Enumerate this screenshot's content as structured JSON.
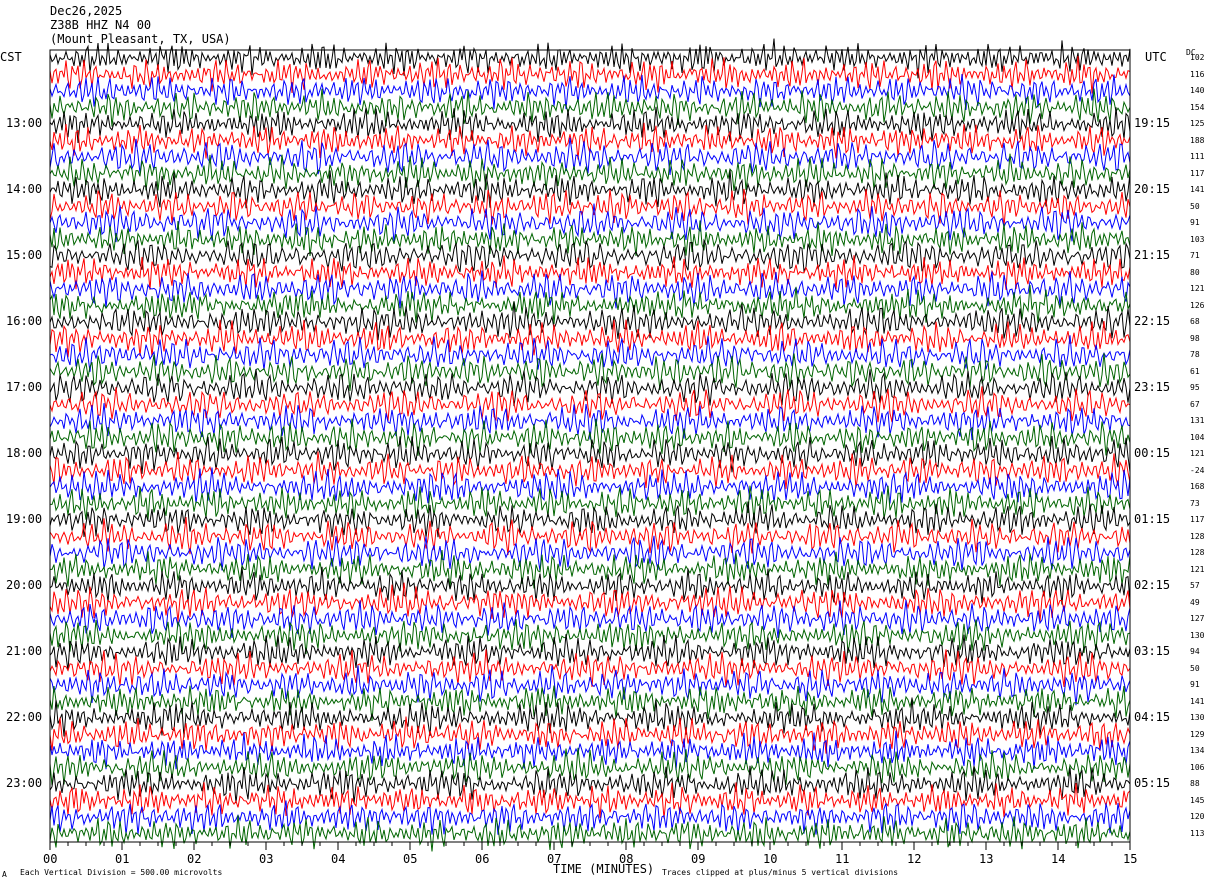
{
  "header": {
    "date": "Dec26,2025",
    "station": "Z38B HHZ N4 00",
    "location": "(Mount Pleasant, TX, USA)"
  },
  "left_timezone": "CST",
  "right_timezone": "UTC",
  "dc_header": "DC",
  "footer": {
    "left": "Each Vertical Division =  500.00 microvolts",
    "right": "Traces clipped at plus/minus 5 vertical divisions",
    "corner_mark": "A"
  },
  "colors": {
    "trace_cycle": [
      "#000000",
      "#ff0000",
      "#0000ff",
      "#006400"
    ]
  },
  "chart_data": {
    "type": "line",
    "title": "",
    "xlabel": "TIME (MINUTES)",
    "ylabel": "",
    "xlim": [
      0,
      15
    ],
    "x_ticks": [
      "00",
      "01",
      "02",
      "03",
      "04",
      "05",
      "06",
      "07",
      "08",
      "09",
      "10",
      "11",
      "12",
      "13",
      "14",
      "15"
    ],
    "rows": 48,
    "minutes_per_row": 15,
    "left_hour_labels": [
      {
        "row": 4,
        "text": "13:00"
      },
      {
        "row": 8,
        "text": "14:00"
      },
      {
        "row": 12,
        "text": "15:00"
      },
      {
        "row": 16,
        "text": "16:00"
      },
      {
        "row": 20,
        "text": "17:00"
      },
      {
        "row": 24,
        "text": "18:00"
      },
      {
        "row": 28,
        "text": "19:00"
      },
      {
        "row": 32,
        "text": "20:00"
      },
      {
        "row": 36,
        "text": "21:00"
      },
      {
        "row": 40,
        "text": "22:00"
      },
      {
        "row": 44,
        "text": "23:00"
      }
    ],
    "right_hour_labels": [
      {
        "row": 4,
        "text": "19:15"
      },
      {
        "row": 8,
        "text": "20:15"
      },
      {
        "row": 12,
        "text": "21:15"
      },
      {
        "row": 16,
        "text": "22:15"
      },
      {
        "row": 20,
        "text": "23:15"
      },
      {
        "row": 24,
        "text": "00:15"
      },
      {
        "row": 28,
        "text": "01:15"
      },
      {
        "row": 32,
        "text": "02:15"
      },
      {
        "row": 36,
        "text": "03:15"
      },
      {
        "row": 40,
        "text": "04:15"
      },
      {
        "row": 44,
        "text": "05:15"
      }
    ],
    "dc_offsets": [
      "102",
      "116",
      "140",
      "154",
      "125",
      "188",
      "111",
      "117",
      "141",
      "50",
      "91",
      "103",
      "71",
      "80",
      "121",
      "126",
      "68",
      "98",
      "78",
      "61",
      "95",
      "67",
      "131",
      "104",
      "121",
      "-24",
      "168",
      "73",
      "117",
      "128",
      "128",
      "121",
      "57",
      "49",
      "127",
      "130",
      "94",
      "50",
      "91",
      "141",
      "130",
      "129",
      "134",
      "106",
      "88",
      "145",
      "120",
      "113"
    ]
  }
}
